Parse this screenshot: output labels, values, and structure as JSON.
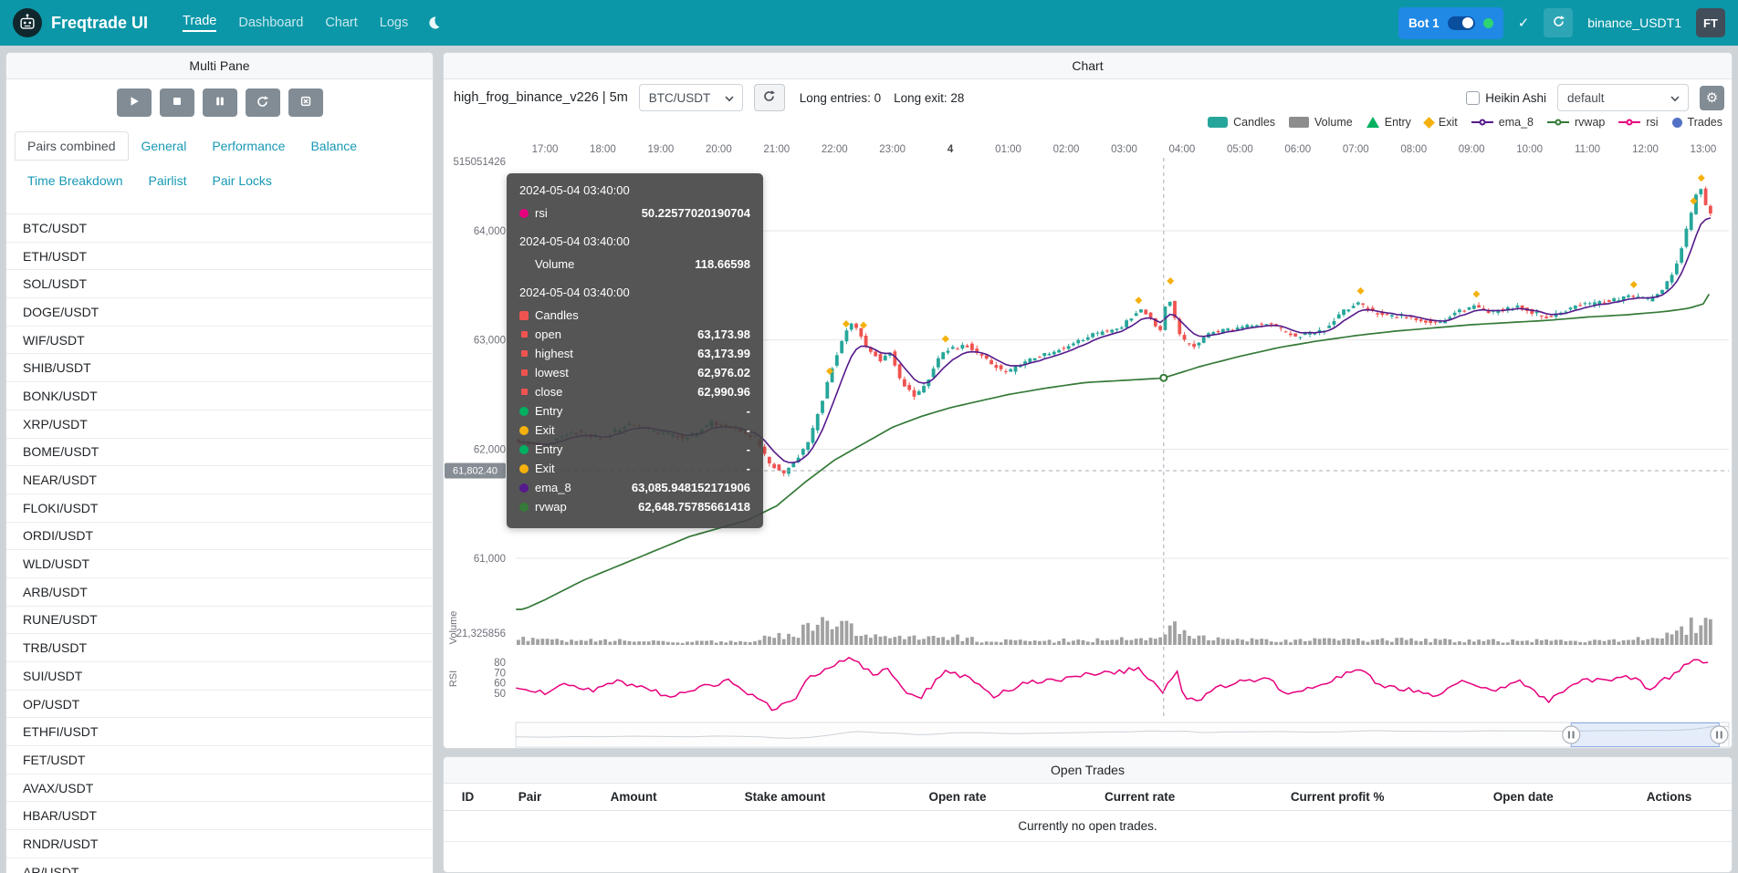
{
  "navbar": {
    "brand": "Freqtrade UI",
    "items": [
      {
        "label": "Trade",
        "active": true
      },
      {
        "label": "Dashboard",
        "active": false
      },
      {
        "label": "Chart",
        "active": false
      },
      {
        "label": "Logs",
        "active": false
      }
    ],
    "bot": {
      "label": "Bot 1",
      "online": true,
      "toggle_on": true
    },
    "account": "binance_USDT1",
    "avatar": "FT",
    "colors": {
      "navbar": "#0b97a8",
      "bot_badge": "#2089e5",
      "online_dot": "#2ed573"
    }
  },
  "multi_pane": {
    "title": "Multi Pane",
    "controls": [
      "play",
      "stop",
      "pause",
      "reload",
      "cancel-open-orders"
    ],
    "tabs_row1": [
      {
        "label": "Pairs combined",
        "active": true
      },
      {
        "label": "General",
        "active": false
      },
      {
        "label": "Performance",
        "active": false
      },
      {
        "label": "Balance",
        "active": false
      }
    ],
    "tabs_row2": [
      {
        "label": "Time Breakdown",
        "active": false
      },
      {
        "label": "Pairlist",
        "active": false
      },
      {
        "label": "Pair Locks",
        "active": false
      }
    ],
    "pairs": [
      "BTC/USDT",
      "ETH/USDT",
      "SOL/USDT",
      "DOGE/USDT",
      "WIF/USDT",
      "SHIB/USDT",
      "BONK/USDT",
      "XRP/USDT",
      "BOME/USDT",
      "NEAR/USDT",
      "FLOKI/USDT",
      "ORDI/USDT",
      "WLD/USDT",
      "ARB/USDT",
      "RUNE/USDT",
      "TRB/USDT",
      "SUI/USDT",
      "OP/USDT",
      "ETHFI/USDT",
      "FET/USDT",
      "AVAX/USDT",
      "HBAR/USDT",
      "RNDR/USDT",
      "AR/USDT"
    ]
  },
  "chart_panel": {
    "title": "Chart",
    "strategy_label": "high_frog_binance_v226 | 5m",
    "pair_select": "BTC/USDT",
    "long_entries": "Long entries: 0",
    "long_exits": "Long exit: 28",
    "heikin_ashi_label": "Heikin Ashi",
    "plot_config_select": "default",
    "legend": [
      {
        "label": "Candles",
        "shape": "roundrect",
        "color": "#26a69a"
      },
      {
        "label": "Volume",
        "shape": "rect",
        "color": "#8d8d8d"
      },
      {
        "label": "Entry",
        "shape": "triangle",
        "color": "#00b061"
      },
      {
        "label": "Exit",
        "shape": "diamond",
        "color": "#f4b10e"
      },
      {
        "label": "ema_8",
        "shape": "line",
        "color": "#551a8b"
      },
      {
        "label": "rvwap",
        "shape": "line",
        "color": "#357a38"
      },
      {
        "label": "rsi",
        "shape": "line",
        "color": "#e6007e"
      },
      {
        "label": "Trades",
        "shape": "circle",
        "color": "#5470c6"
      }
    ],
    "tooltip": {
      "sections": [
        {
          "time": "2024-05-04 03:40:00",
          "rows": [
            {
              "marker": "#e6007e",
              "shape": "circle",
              "label": "rsi",
              "value": "50.22577020190704"
            }
          ]
        },
        {
          "time": "2024-05-04 03:40:00",
          "rows": [
            {
              "marker": "",
              "shape": "none",
              "label": "Volume",
              "value": "118.66598"
            }
          ]
        },
        {
          "time": "2024-05-04 03:40:00",
          "rows": [
            {
              "marker": "#ef5350",
              "shape": "square",
              "label": "Candles",
              "value": ""
            },
            {
              "marker": "#ef5350",
              "shape": "square-small",
              "label": "open",
              "value": "63,173.98"
            },
            {
              "marker": "#ef5350",
              "shape": "square-small",
              "label": "highest",
              "value": "63,173.99"
            },
            {
              "marker": "#ef5350",
              "shape": "square-small",
              "label": "lowest",
              "value": "62,976.02"
            },
            {
              "marker": "#ef5350",
              "shape": "square-small",
              "label": "close",
              "value": "62,990.96"
            },
            {
              "marker": "#00b061",
              "shape": "circle",
              "label": "Entry",
              "value": "-"
            },
            {
              "marker": "#f4b10e",
              "shape": "circle",
              "label": "Exit",
              "value": "-"
            },
            {
              "marker": "#00b061",
              "shape": "circle",
              "label": "Entry",
              "value": "-"
            },
            {
              "marker": "#f4b10e",
              "shape": "circle",
              "label": "Exit",
              "value": "-"
            },
            {
              "marker": "#551a8b",
              "shape": "circle",
              "label": "ema_8",
              "value": "63,085.948152171906"
            },
            {
              "marker": "#357a38",
              "shape": "circle",
              "label": "rvwap",
              "value": "62,648.75785661418"
            }
          ]
        }
      ]
    }
  },
  "chart_data": {
    "type": "candlestick",
    "pair": "BTC/USDT",
    "timeframe": "5m",
    "x_ticks": [
      "17:00",
      "18:00",
      "19:00",
      "20:00",
      "21:00",
      "22:00",
      "23:00",
      "4",
      "01:00",
      "02:00",
      "03:00",
      "04:00",
      "05:00",
      "06:00",
      "07:00",
      "08:00",
      "09:00",
      "10:00",
      "11:00",
      "12:00",
      "13:00"
    ],
    "price_ticks": [
      {
        "value": 64000,
        "label": "64,000"
      },
      {
        "value": 63000,
        "label": "63,000"
      },
      {
        "value": 62000,
        "label": "62,000"
      },
      {
        "value": 61000,
        "label": "61,000"
      }
    ],
    "top_axis_label": "515051426",
    "volume_axis_label": "21,325856",
    "volume_axis_name": "Volume",
    "rsi_axis_name": "RSI",
    "rsi_ticks": [
      80,
      70,
      60,
      50
    ],
    "crosshair": {
      "time_min": 641,
      "price_label": "61,802.40",
      "price": 61802.4
    },
    "candle_interval_min": 5,
    "time_domain_min": [
      -30,
      1206
    ],
    "zoom_window": [
      0.87,
      0.992
    ],
    "price_anchors": [
      [
        -30,
        62080
      ],
      [
        0,
        62020
      ],
      [
        30,
        62160
      ],
      [
        60,
        62100
      ],
      [
        90,
        62230
      ],
      [
        120,
        62150
      ],
      [
        150,
        62100
      ],
      [
        175,
        62250
      ],
      [
        200,
        62180
      ],
      [
        220,
        62100
      ],
      [
        235,
        61870
      ],
      [
        250,
        61790
      ],
      [
        262,
        61900
      ],
      [
        275,
        62050
      ],
      [
        288,
        62400
      ],
      [
        300,
        62750
      ],
      [
        310,
        63000
      ],
      [
        318,
        63150
      ],
      [
        325,
        63100
      ],
      [
        335,
        62950
      ],
      [
        350,
        62820
      ],
      [
        360,
        62880
      ],
      [
        372,
        62600
      ],
      [
        385,
        62480
      ],
      [
        400,
        62650
      ],
      [
        415,
        62900
      ],
      [
        440,
        62950
      ],
      [
        465,
        62780
      ],
      [
        480,
        62700
      ],
      [
        505,
        62820
      ],
      [
        540,
        62930
      ],
      [
        570,
        63050
      ],
      [
        600,
        63120
      ],
      [
        618,
        63280
      ],
      [
        630,
        63200
      ],
      [
        640,
        63080
      ],
      [
        648,
        63430
      ],
      [
        655,
        63200
      ],
      [
        662,
        63000
      ],
      [
        675,
        62940
      ],
      [
        690,
        63060
      ],
      [
        720,
        63110
      ],
      [
        750,
        63160
      ],
      [
        780,
        63030
      ],
      [
        810,
        63100
      ],
      [
        828,
        63260
      ],
      [
        845,
        63340
      ],
      [
        860,
        63250
      ],
      [
        900,
        63200
      ],
      [
        930,
        63150
      ],
      [
        948,
        63260
      ],
      [
        965,
        63310
      ],
      [
        980,
        63250
      ],
      [
        1010,
        63300
      ],
      [
        1040,
        63210
      ],
      [
        1070,
        63310
      ],
      [
        1100,
        63350
      ],
      [
        1130,
        63400
      ],
      [
        1145,
        63370
      ],
      [
        1160,
        63460
      ],
      [
        1172,
        63620
      ],
      [
        1180,
        63850
      ],
      [
        1188,
        64100
      ],
      [
        1196,
        64350
      ],
      [
        1202,
        64420
      ],
      [
        1206,
        64150
      ]
    ],
    "rvwap_anchors": [
      [
        -30,
        60500
      ],
      [
        0,
        60620
      ],
      [
        40,
        60800
      ],
      [
        95,
        61000
      ],
      [
        150,
        61200
      ],
      [
        210,
        61350
      ],
      [
        240,
        61480
      ],
      [
        270,
        61700
      ],
      [
        300,
        61900
      ],
      [
        330,
        62050
      ],
      [
        360,
        62200
      ],
      [
        390,
        62300
      ],
      [
        420,
        62380
      ],
      [
        450,
        62440
      ],
      [
        480,
        62500
      ],
      [
        520,
        62560
      ],
      [
        560,
        62610
      ],
      [
        600,
        62630
      ],
      [
        640,
        62650
      ],
      [
        680,
        62760
      ],
      [
        720,
        62850
      ],
      [
        760,
        62930
      ],
      [
        800,
        62990
      ],
      [
        840,
        63040
      ],
      [
        880,
        63080
      ],
      [
        920,
        63110
      ],
      [
        960,
        63140
      ],
      [
        1000,
        63160
      ],
      [
        1040,
        63180
      ],
      [
        1080,
        63210
      ],
      [
        1120,
        63230
      ],
      [
        1160,
        63260
      ],
      [
        1185,
        63290
      ],
      [
        1200,
        63330
      ],
      [
        1206,
        63420
      ]
    ],
    "rsi_anchors": [
      [
        -30,
        55
      ],
      [
        0,
        50
      ],
      [
        25,
        60
      ],
      [
        50,
        52
      ],
      [
        75,
        62
      ],
      [
        100,
        55
      ],
      [
        130,
        47
      ],
      [
        160,
        56
      ],
      [
        190,
        62
      ],
      [
        215,
        48
      ],
      [
        235,
        36
      ],
      [
        255,
        40
      ],
      [
        275,
        66
      ],
      [
        295,
        76
      ],
      [
        312,
        84
      ],
      [
        325,
        78
      ],
      [
        340,
        68
      ],
      [
        355,
        73
      ],
      [
        372,
        52
      ],
      [
        388,
        45
      ],
      [
        415,
        72
      ],
      [
        435,
        66
      ],
      [
        465,
        48
      ],
      [
        500,
        60
      ],
      [
        530,
        63
      ],
      [
        560,
        69
      ],
      [
        590,
        70
      ],
      [
        615,
        74
      ],
      [
        640,
        50
      ],
      [
        655,
        72
      ],
      [
        662,
        46
      ],
      [
        675,
        42
      ],
      [
        695,
        56
      ],
      [
        720,
        61
      ],
      [
        750,
        63
      ],
      [
        772,
        48
      ],
      [
        800,
        58
      ],
      [
        830,
        69
      ],
      [
        845,
        73
      ],
      [
        865,
        58
      ],
      [
        895,
        54
      ],
      [
        920,
        47
      ],
      [
        950,
        64
      ],
      [
        980,
        53
      ],
      [
        1010,
        61
      ],
      [
        1040,
        43
      ],
      [
        1070,
        61
      ],
      [
        1100,
        63
      ],
      [
        1128,
        66
      ],
      [
        1145,
        54
      ],
      [
        1160,
        63
      ],
      [
        1178,
        74
      ],
      [
        1190,
        83
      ],
      [
        1200,
        80
      ],
      [
        1206,
        78
      ]
    ],
    "volume_envelope": [
      [
        -30,
        0.35
      ],
      [
        0,
        0.25
      ],
      [
        60,
        0.18
      ],
      [
        120,
        0.15
      ],
      [
        180,
        0.18
      ],
      [
        215,
        0.2
      ],
      [
        240,
        0.45
      ],
      [
        265,
        0.6
      ],
      [
        285,
        0.85
      ],
      [
        300,
        0.8
      ],
      [
        315,
        0.7
      ],
      [
        330,
        0.5
      ],
      [
        355,
        0.35
      ],
      [
        375,
        0.3
      ],
      [
        395,
        0.25
      ],
      [
        415,
        0.4
      ],
      [
        445,
        0.2
      ],
      [
        480,
        0.22
      ],
      [
        520,
        0.18
      ],
      [
        560,
        0.2
      ],
      [
        590,
        0.25
      ],
      [
        615,
        0.3
      ],
      [
        640,
        0.35
      ],
      [
        648,
        0.9
      ],
      [
        660,
        0.55
      ],
      [
        680,
        0.3
      ],
      [
        720,
        0.2
      ],
      [
        760,
        0.18
      ],
      [
        800,
        0.22
      ],
      [
        840,
        0.2
      ],
      [
        880,
        0.22
      ],
      [
        920,
        0.18
      ],
      [
        960,
        0.2
      ],
      [
        1000,
        0.18
      ],
      [
        1040,
        0.2
      ],
      [
        1080,
        0.18
      ],
      [
        1120,
        0.22
      ],
      [
        1150,
        0.3
      ],
      [
        1168,
        0.45
      ],
      [
        1180,
        0.7
      ],
      [
        1190,
        0.95
      ],
      [
        1198,
        1.0
      ],
      [
        1206,
        0.85
      ]
    ],
    "exit_marker_times": [
      295,
      312,
      330,
      415,
      615,
      648,
      845,
      965,
      1128,
      1190,
      1198
    ],
    "colors": {
      "up": "#26a69a",
      "down": "#ef5350",
      "volume": "#909090",
      "ema_8": "#551a8b",
      "rvwap": "#357a38",
      "rsi": "#e6007e",
      "exit": "#f4b10e",
      "grid": "#e6e6e6",
      "axis_text": "#6e7079",
      "crosshair": "#a6abb3"
    }
  },
  "open_trades": {
    "title": "Open Trades",
    "columns": [
      "ID",
      "Pair",
      "Amount",
      "Stake amount",
      "Open rate",
      "Current rate",
      "Current profit %",
      "Open date",
      "Actions"
    ],
    "empty_message": "Currently no open trades."
  }
}
